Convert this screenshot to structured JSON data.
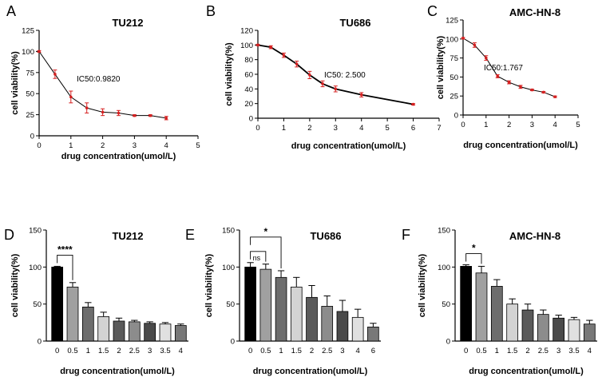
{
  "chart_data": [
    {
      "panel_label": "A",
      "type": "line",
      "title": "TU212",
      "xlabel": "drug concentration(umol/L)",
      "ylabel": "cell viability(%)",
      "xlim": [
        0,
        5
      ],
      "ylim": [
        0,
        125
      ],
      "xticks": [
        0,
        1,
        2,
        3,
        4,
        5
      ],
      "yticks": [
        0,
        25,
        50,
        75,
        100,
        125
      ],
      "x": [
        0,
        0.5,
        1,
        1.5,
        2,
        2.5,
        3,
        3.5,
        4
      ],
      "y": [
        100,
        73,
        46,
        33,
        28,
        27,
        24,
        24,
        21
      ],
      "err": [
        1,
        5,
        7,
        6,
        4,
        3,
        1,
        1,
        2
      ],
      "annotation": "IC50:0.9820"
    },
    {
      "panel_label": "B",
      "type": "line",
      "title": "TU686",
      "xlabel": "drug concentration(umol/L)",
      "ylabel": "cell viability(%)",
      "xlim": [
        0,
        7
      ],
      "ylim": [
        0,
        120
      ],
      "xticks": [
        0,
        1,
        2,
        3,
        4,
        5,
        6,
        7
      ],
      "yticks": [
        0,
        20,
        40,
        60,
        80,
        100,
        120
      ],
      "x": [
        0,
        0.5,
        1,
        1.5,
        2,
        2.5,
        3,
        4,
        6
      ],
      "y": [
        100,
        97,
        86,
        74,
        59,
        47,
        40,
        32,
        19
      ],
      "err": [
        1,
        2,
        3,
        4,
        5,
        4,
        4,
        3,
        1
      ],
      "annotation": "IC50:  2.500"
    },
    {
      "panel_label": "C",
      "type": "line",
      "title": "AMC-HN-8",
      "xlabel": "drug concentration(umol/L)",
      "ylabel": "cell viability(%)",
      "xlim": [
        0,
        5
      ],
      "ylim": [
        0,
        125
      ],
      "xticks": [
        0,
        1,
        2,
        3,
        4,
        5
      ],
      "yticks": [
        0,
        25,
        50,
        75,
        100,
        125
      ],
      "x": [
        0,
        0.5,
        1,
        1.5,
        2,
        2.5,
        3,
        3.5,
        4
      ],
      "y": [
        101,
        92,
        75,
        51,
        43,
        37,
        33,
        30,
        24
      ],
      "err": [
        1,
        3,
        3,
        2,
        2,
        2,
        1,
        1,
        1
      ],
      "annotation": "IC50:1.767"
    },
    {
      "panel_label": "D",
      "type": "bar",
      "title": "TU212",
      "xlabel": "drug concentration(umol/L)",
      "ylabel": "cell viability(%)",
      "ylim": [
        0,
        150
      ],
      "yticks": [
        0,
        50,
        100,
        150
      ],
      "categories": [
        "0",
        "0.5",
        "1",
        "1.5",
        "2",
        "2.5",
        "3",
        "3.5",
        "4"
      ],
      "values": [
        100,
        73,
        46,
        33,
        27,
        26,
        24,
        23,
        21
      ],
      "err": [
        1,
        6,
        6,
        6,
        4,
        2,
        2,
        2,
        2
      ],
      "fills": [
        "#000000",
        "#a0a0a0",
        "#6d6d6d",
        "#d3d3d3",
        "#5a5a5a",
        "#8c8c8c",
        "#4a4a4a",
        "#e0e0e0",
        "#787878"
      ],
      "significance": [
        {
          "from": 0,
          "to": 1,
          "label": "****"
        }
      ]
    },
    {
      "panel_label": "E",
      "type": "bar",
      "title": "TU686",
      "xlabel": "drug concentration(umol/L)",
      "ylabel": "cell viability(%)",
      "ylim": [
        0,
        150
      ],
      "yticks": [
        0,
        50,
        100,
        150
      ],
      "categories": [
        "0",
        "0.5",
        "1",
        "1.5",
        "2",
        "2.5",
        "3",
        "4",
        "6"
      ],
      "values": [
        100,
        97,
        86,
        73,
        59,
        47,
        40,
        32,
        19
      ],
      "err": [
        6,
        7,
        9,
        13,
        16,
        14,
        15,
        11,
        5
      ],
      "fills": [
        "#000000",
        "#a0a0a0",
        "#6d6d6d",
        "#d3d3d3",
        "#5a5a5a",
        "#8c8c8c",
        "#4a4a4a",
        "#e0e0e0",
        "#787878"
      ],
      "significance": [
        {
          "from": 0,
          "to": 1,
          "label": "ns"
        },
        {
          "from": 0,
          "to": 2,
          "label": "*"
        }
      ]
    },
    {
      "panel_label": "F",
      "type": "bar",
      "title": "AMC-HN-8",
      "xlabel": "drug concentration(umol/L)",
      "ylabel": "cell viability(%)",
      "ylim": [
        0,
        150
      ],
      "yticks": [
        0,
        50,
        100,
        150
      ],
      "categories": [
        "0",
        "0.5",
        "1",
        "1.5",
        "2",
        "2.5",
        "3",
        "3.5",
        "4"
      ],
      "values": [
        101,
        92,
        74,
        50,
        42,
        36,
        31,
        29,
        23
      ],
      "err": [
        2,
        9,
        9,
        7,
        8,
        6,
        4,
        3,
        5
      ],
      "fills": [
        "#000000",
        "#a0a0a0",
        "#6d6d6d",
        "#d3d3d3",
        "#5a5a5a",
        "#8c8c8c",
        "#4a4a4a",
        "#e0e0e0",
        "#787878"
      ],
      "significance": [
        {
          "from": 0,
          "to": 1,
          "label": "*"
        }
      ]
    }
  ],
  "colors": {
    "axis": "#000000",
    "line": "#000000",
    "error": "#d62020",
    "point": "#d62020"
  }
}
